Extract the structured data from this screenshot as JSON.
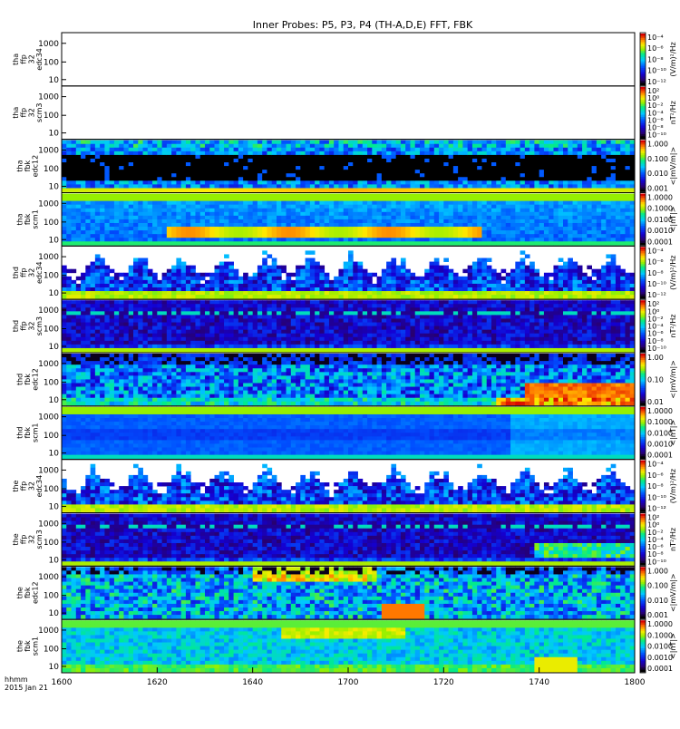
{
  "chart_data": {
    "type": "heatmap",
    "title": "Inner Probes: P5, P3, P4 (TH-A,D,E) FFT, FBK",
    "x_axis": {
      "range": [
        1600,
        1800
      ],
      "tick_labels": [
        "1600",
        "1620",
        "1640",
        "1700",
        "1720",
        "1740",
        "1800"
      ],
      "label_lines": [
        "hhmm",
        "2015 Jan 21"
      ]
    },
    "y_tick_labels": [
      "1000",
      "100",
      "10"
    ],
    "panels": [
      {
        "id": "tha-ffp32-edc34",
        "label_lines": [
          "tha",
          "ffp",
          "32",
          "edc34"
        ],
        "colorbar_ticks": [
          "10⁻⁴",
          "10⁻⁶",
          "10⁻⁸",
          "10⁻¹⁰",
          "10⁻¹²"
        ],
        "colorbar_unit": "(V/m)²/Hz"
      },
      {
        "id": "tha-ffp32-scm3",
        "label_lines": [
          "tha",
          "ffp",
          "32",
          "scm3"
        ],
        "colorbar_ticks": [
          "10²",
          "10⁰",
          "10⁻²",
          "10⁻⁴",
          "10⁻⁶",
          "10⁻⁸",
          "10⁻¹⁰"
        ],
        "colorbar_unit": "nT²/Hz"
      },
      {
        "id": "tha-fbk-edc12",
        "label_lines": [
          "tha",
          "fbk",
          "edc12"
        ],
        "colorbar_ticks": [
          "1.000",
          "0.100",
          "0.010",
          "0.001"
        ],
        "colorbar_unit": "<|mV/m|>"
      },
      {
        "id": "tha-fbk-scm1",
        "label_lines": [
          "tha",
          "fbk",
          "scm1"
        ],
        "colorbar_ticks": [
          "1.0000",
          "0.1000",
          "0.0100",
          "0.0010",
          "0.0001"
        ],
        "colorbar_unit": "<|nT|>"
      },
      {
        "id": "thd-ffp32-edc34",
        "label_lines": [
          "thd",
          "ffp",
          "32",
          "edc34"
        ],
        "colorbar_ticks": [
          "10⁻⁴",
          "10⁻⁶",
          "10⁻⁸",
          "10⁻¹⁰",
          "10⁻¹²"
        ],
        "colorbar_unit": "(V/m)²/Hz"
      },
      {
        "id": "thd-ffp32-scm3",
        "label_lines": [
          "thd",
          "ffp",
          "32",
          "scm3"
        ],
        "colorbar_ticks": [
          "10²",
          "10⁰",
          "10⁻²",
          "10⁻⁴",
          "10⁻⁶",
          "10⁻⁸",
          "10⁻¹⁰"
        ],
        "colorbar_unit": "nT²/Hz"
      },
      {
        "id": "thd-fbk-edc12",
        "label_lines": [
          "thd",
          "fbk",
          "edc12"
        ],
        "colorbar_ticks": [
          "1.00",
          "0.10",
          "0.01"
        ],
        "colorbar_unit": "<|mV/m|>"
      },
      {
        "id": "thd-fbk-scm1",
        "label_lines": [
          "thd",
          "fbk",
          "scm1"
        ],
        "colorbar_ticks": [
          "1.0000",
          "0.1000",
          "0.0100",
          "0.0010",
          "0.0001"
        ],
        "colorbar_unit": "<|nT|>"
      },
      {
        "id": "the-ffp32-edc34",
        "label_lines": [
          "the",
          "ffp",
          "32",
          "edc34"
        ],
        "colorbar_ticks": [
          "10⁻⁴",
          "10⁻⁶",
          "10⁻⁸",
          "10⁻¹⁰",
          "10⁻¹²"
        ],
        "colorbar_unit": "(V/m)²/Hz"
      },
      {
        "id": "the-ffp32-scm3",
        "label_lines": [
          "the",
          "ffp",
          "32",
          "scm3"
        ],
        "colorbar_ticks": [
          "10²",
          "10⁰",
          "10⁻²",
          "10⁻⁴",
          "10⁻⁶",
          "10⁻⁸",
          "10⁻¹⁰"
        ],
        "colorbar_unit": "nT²/Hz"
      },
      {
        "id": "the-fbk-edc12",
        "label_lines": [
          "the",
          "fbk",
          "edc12"
        ],
        "colorbar_ticks": [
          "1.000",
          "0.100",
          "0.010",
          "0.001"
        ],
        "colorbar_unit": "<|mV/m|>"
      },
      {
        "id": "the-fbk-scm1",
        "label_lines": [
          "the",
          "fbk",
          "scm1"
        ],
        "colorbar_ticks": [
          "1.0000",
          "0.1000",
          "0.0100",
          "0.0010",
          "0.0001"
        ],
        "colorbar_unit": "<|nT|>"
      }
    ]
  }
}
